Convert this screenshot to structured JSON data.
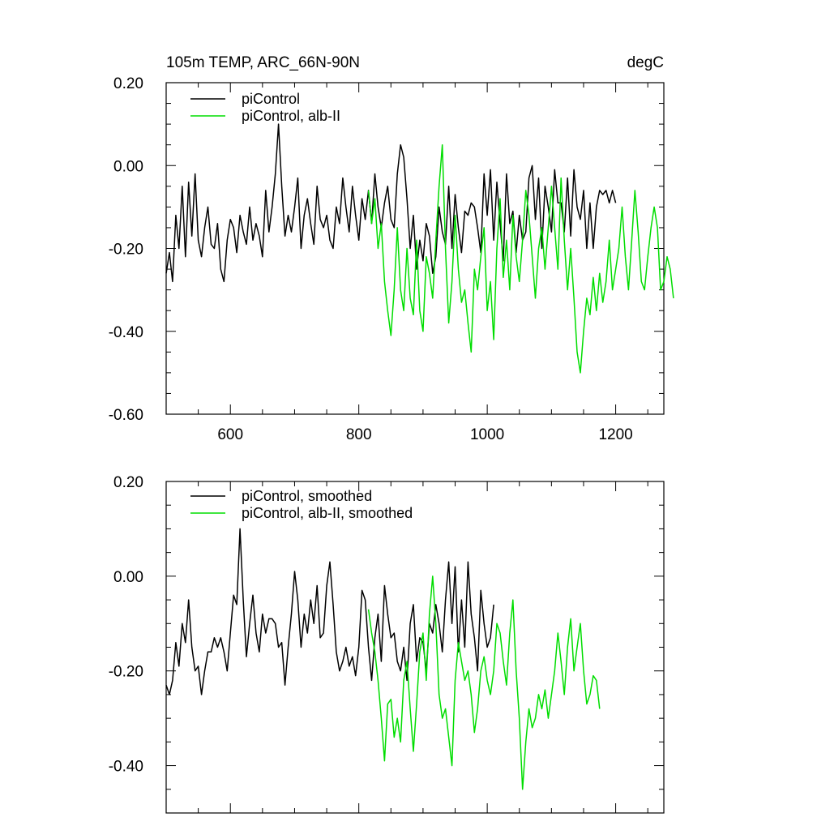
{
  "chart_data": [
    {
      "type": "line",
      "title": "105m TEMP, ARC_66N-90N",
      "units": "degC",
      "xlabel": "",
      "ylabel": "",
      "xlim": [
        500,
        1275
      ],
      "ylim": [
        -0.6,
        0.2
      ],
      "x_ticks": [
        600,
        800,
        1000,
        1200
      ],
      "x_tick_labels": [
        "600",
        "800",
        "1000",
        "1200"
      ],
      "y_ticks": [
        0.2,
        0.0,
        -0.2,
        -0.4,
        -0.6
      ],
      "y_tick_labels": [
        "0.20",
        "0.00",
        "-0.20",
        "-0.40",
        "-0.60"
      ],
      "legend_position": "top-left",
      "series": [
        {
          "name": "piControl",
          "color": "#000000",
          "x_start": 500,
          "x_step": 5,
          "values": [
            -0.26,
            -0.21,
            -0.28,
            -0.12,
            -0.2,
            -0.05,
            -0.22,
            -0.04,
            -0.17,
            -0.02,
            -0.18,
            -0.22,
            -0.15,
            -0.1,
            -0.19,
            -0.2,
            -0.14,
            -0.25,
            -0.28,
            -0.18,
            -0.13,
            -0.15,
            -0.21,
            -0.12,
            -0.16,
            -0.19,
            -0.1,
            -0.18,
            -0.14,
            -0.17,
            -0.22,
            -0.06,
            -0.16,
            -0.1,
            -0.02,
            0.1,
            -0.05,
            -0.17,
            -0.12,
            -0.16,
            -0.1,
            -0.03,
            -0.2,
            -0.12,
            -0.08,
            -0.14,
            -0.19,
            -0.05,
            -0.13,
            -0.15,
            -0.12,
            -0.18,
            -0.2,
            -0.1,
            -0.14,
            -0.03,
            -0.1,
            -0.16,
            -0.05,
            -0.12,
            -0.18,
            -0.08,
            -0.13,
            -0.06,
            -0.14,
            -0.02,
            -0.1,
            -0.15,
            -0.09,
            -0.05,
            -0.13,
            -0.15,
            -0.02,
            0.05,
            0.02,
            -0.08,
            -0.2,
            -0.12,
            -0.25,
            -0.18,
            -0.23,
            -0.14,
            -0.17,
            -0.26,
            -0.22,
            -0.1,
            -0.16,
            -0.19,
            -0.05,
            -0.2,
            -0.07,
            -0.15,
            -0.21,
            -0.11,
            -0.12,
            -0.09,
            -0.1,
            -0.15,
            -0.21,
            -0.02,
            -0.12,
            -0.01,
            -0.18,
            -0.04,
            -0.14,
            -0.23,
            -0.02,
            -0.14,
            -0.11,
            -0.21,
            -0.12,
            -0.18,
            -0.16,
            -0.03,
            0.0,
            -0.13,
            -0.03,
            -0.2,
            -0.05,
            -0.1,
            -0.16,
            -0.01,
            -0.09,
            -0.09,
            -0.16,
            -0.03,
            -0.17,
            -0.01,
            -0.1,
            -0.13,
            -0.06,
            -0.2,
            -0.09,
            -0.2,
            -0.1,
            -0.06,
            -0.07,
            -0.06,
            -0.09,
            -0.06,
            -0.09
          ]
        },
        {
          "name": "piControl, alb-II",
          "color": "#00dd00",
          "x_start": 815,
          "x_step": 5,
          "values": [
            -0.06,
            -0.14,
            -0.08,
            -0.2,
            -0.14,
            -0.28,
            -0.35,
            -0.41,
            -0.3,
            -0.15,
            -0.3,
            -0.35,
            -0.2,
            -0.32,
            -0.36,
            -0.18,
            -0.35,
            -0.4,
            -0.22,
            -0.26,
            -0.32,
            -0.18,
            -0.05,
            0.05,
            -0.2,
            -0.38,
            -0.28,
            -0.12,
            -0.25,
            -0.33,
            -0.3,
            -0.38,
            -0.45,
            -0.25,
            -0.3,
            -0.22,
            -0.15,
            -0.35,
            -0.28,
            -0.42,
            -0.2,
            -0.08,
            -0.27,
            -0.18,
            -0.3,
            -0.12,
            -0.22,
            -0.28,
            -0.18,
            -0.06,
            -0.12,
            -0.22,
            -0.32,
            -0.2,
            -0.15,
            -0.25,
            -0.15,
            -0.05,
            -0.15,
            -0.25,
            -0.03,
            -0.18,
            -0.3,
            -0.2,
            -0.32,
            -0.45,
            -0.5,
            -0.4,
            -0.32,
            -0.36,
            -0.27,
            -0.35,
            -0.26,
            -0.33,
            -0.28,
            -0.18,
            -0.3,
            -0.25,
            -0.2,
            -0.1,
            -0.22,
            -0.3,
            -0.18,
            -0.06,
            -0.16,
            -0.28,
            -0.3,
            -0.22,
            -0.15,
            -0.1,
            -0.15,
            -0.3,
            -0.28,
            -0.22,
            -0.25,
            -0.32
          ]
        }
      ]
    },
    {
      "type": "line",
      "title": "",
      "xlabel": "",
      "ylabel": "",
      "xlim": [
        500,
        1275
      ],
      "ylim": [
        -0.5,
        0.2
      ],
      "x_ticks": [
        600,
        800,
        1000,
        1200
      ],
      "x_tick_labels": [],
      "y_ticks": [
        0.2,
        0.0,
        -0.2,
        -0.4
      ],
      "y_tick_labels": [
        "0.20",
        "0.00",
        "-0.20",
        "-0.40"
      ],
      "legend_position": "top-left",
      "series": [
        {
          "name": "piControl, smoothed",
          "color": "#000000",
          "x_start": 500,
          "x_step": 5,
          "values": [
            -0.23,
            -0.25,
            -0.22,
            -0.14,
            -0.19,
            -0.1,
            -0.14,
            -0.05,
            -0.15,
            -0.2,
            -0.19,
            -0.25,
            -0.2,
            -0.16,
            -0.16,
            -0.13,
            -0.15,
            -0.13,
            -0.16,
            -0.2,
            -0.12,
            -0.04,
            -0.06,
            0.1,
            -0.05,
            -0.17,
            -0.1,
            -0.04,
            -0.12,
            -0.16,
            -0.08,
            -0.12,
            -0.09,
            -0.09,
            -0.1,
            -0.15,
            -0.14,
            -0.23,
            -0.15,
            -0.08,
            0.01,
            -0.05,
            -0.15,
            -0.08,
            -0.12,
            -0.05,
            -0.1,
            -0.02,
            -0.13,
            -0.12,
            -0.02,
            0.03,
            -0.06,
            -0.16,
            -0.2,
            -0.18,
            -0.15,
            -0.19,
            -0.17,
            -0.21,
            -0.15,
            -0.03,
            -0.05,
            -0.15,
            -0.22,
            -0.13,
            -0.08,
            -0.18,
            -0.02,
            -0.08,
            -0.13,
            -0.12,
            -0.18,
            -0.2,
            -0.15,
            -0.22,
            -0.1,
            -0.06,
            -0.18,
            -0.13,
            -0.14,
            -0.2,
            -0.1,
            -0.12,
            -0.06,
            -0.1,
            -0.16,
            -0.05,
            0.03,
            -0.1,
            0.02,
            -0.16,
            -0.05,
            -0.15,
            0.03,
            -0.08,
            -0.13,
            -0.2,
            -0.03,
            -0.1,
            -0.15,
            -0.13,
            -0.06
          ]
        },
        {
          "name": "piControl, alb-II, smoothed",
          "color": "#00dd00",
          "x_start": 815,
          "x_step": 5,
          "values": [
            -0.07,
            -0.12,
            -0.16,
            -0.22,
            -0.3,
            -0.39,
            -0.27,
            -0.26,
            -0.34,
            -0.3,
            -0.35,
            -0.22,
            -0.18,
            -0.28,
            -0.37,
            -0.27,
            -0.16,
            -0.12,
            -0.22,
            -0.08,
            0.0,
            -0.1,
            -0.25,
            -0.3,
            -0.28,
            -0.34,
            -0.4,
            -0.22,
            -0.14,
            -0.18,
            -0.22,
            -0.2,
            -0.25,
            -0.33,
            -0.28,
            -0.2,
            -0.17,
            -0.22,
            -0.25,
            -0.2,
            -0.1,
            -0.12,
            -0.18,
            -0.23,
            -0.12,
            -0.05,
            -0.2,
            -0.3,
            -0.45,
            -0.35,
            -0.28,
            -0.32,
            -0.3,
            -0.25,
            -0.28,
            -0.24,
            -0.3,
            -0.25,
            -0.2,
            -0.12,
            -0.18,
            -0.25,
            -0.15,
            -0.09,
            -0.2,
            -0.15,
            -0.1,
            -0.2,
            -0.27,
            -0.25,
            -0.21,
            -0.22,
            -0.28
          ]
        }
      ]
    }
  ]
}
